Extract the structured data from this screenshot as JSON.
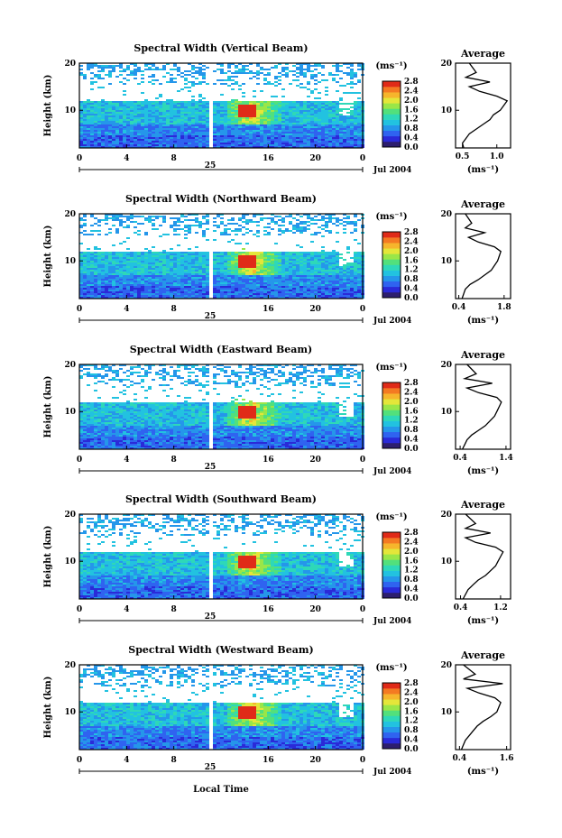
{
  "figure": {
    "xlabel": "Local Time",
    "date_label": "Jul 2004",
    "day_label": "25",
    "ylabel": "Height (km)",
    "colorbar_unit": "(ms⁻¹)",
    "avg_title": "Average",
    "avg_xlabel": "(ms⁻¹)",
    "colorbar_ticks": [
      "0.0",
      "0.4",
      "0.8",
      "1.2",
      "1.6",
      "2.0",
      "2.4",
      "2.8"
    ],
    "colorscale": [
      "#2d1e6e",
      "#2a2ad8",
      "#2f63f0",
      "#2596ea",
      "#22c2e0",
      "#2ed8b8",
      "#52e07c",
      "#9ae648",
      "#e4e63a",
      "#f6b52c",
      "#f47a22",
      "#e02a18"
    ]
  },
  "chart_data": [
    {
      "type": "heatmap",
      "title": "Spectral Width (Vertical Beam)",
      "xlim": [
        0,
        24
      ],
      "ylim": [
        2,
        20
      ],
      "xticks": [
        "0",
        "4",
        "8",
        "16",
        "20",
        "0"
      ],
      "yticks": [
        "10",
        "20"
      ],
      "zlim": [
        0,
        2.8
      ],
      "average": {
        "xticks": [
          "0.5",
          "1.0"
        ],
        "xlim": [
          0.4,
          1.2
        ],
        "x": [
          0.52,
          0.5,
          0.55,
          0.6,
          0.7,
          0.8,
          0.9,
          0.95,
          1.05,
          1.1,
          1.15,
          1.0,
          0.75,
          0.6,
          0.9,
          0.55,
          0.7,
          0.6
        ],
        "y": [
          2,
          3,
          4,
          5,
          6,
          7,
          8,
          9,
          10,
          11,
          12,
          13,
          14,
          15,
          16,
          17,
          18,
          20
        ]
      }
    },
    {
      "type": "heatmap",
      "title": "Spectral Width (Northward Beam)",
      "xlim": [
        0,
        24
      ],
      "ylim": [
        2,
        20
      ],
      "xticks": [
        "0",
        "4",
        "8",
        "16",
        "20",
        "0"
      ],
      "yticks": [
        "10",
        "20"
      ],
      "zlim": [
        0,
        2.8
      ],
      "average": {
        "xticks": [
          "0.4",
          "1.8"
        ],
        "xlim": [
          0.3,
          2.0
        ],
        "x": [
          0.5,
          0.55,
          0.6,
          0.75,
          1.0,
          1.2,
          1.4,
          1.5,
          1.6,
          1.65,
          1.7,
          1.5,
          1.0,
          0.7,
          1.2,
          0.6,
          0.8,
          0.6
        ],
        "y": [
          2,
          3,
          4,
          5,
          6,
          7,
          8,
          9,
          10,
          11,
          12,
          13,
          14,
          15,
          16,
          17,
          18,
          20
        ]
      }
    },
    {
      "type": "heatmap",
      "title": "Spectral Width (Eastward Beam)",
      "xlim": [
        0,
        24
      ],
      "ylim": [
        2,
        20
      ],
      "xticks": [
        "0",
        "4",
        "8",
        "16",
        "20",
        "0"
      ],
      "yticks": [
        "10",
        "20"
      ],
      "zlim": [
        0,
        2.8
      ],
      "average": {
        "xticks": [
          "0.4",
          "1.4"
        ],
        "xlim": [
          0.3,
          1.5
        ],
        "x": [
          0.45,
          0.5,
          0.55,
          0.65,
          0.8,
          0.95,
          1.05,
          1.15,
          1.2,
          1.25,
          1.3,
          1.2,
          0.8,
          0.55,
          1.1,
          0.5,
          0.75,
          0.55
        ],
        "y": [
          2,
          3,
          4,
          5,
          6,
          7,
          8,
          9,
          10,
          11,
          12,
          13,
          14,
          15,
          16,
          17,
          18,
          20
        ]
      }
    },
    {
      "type": "heatmap",
      "title": "Spectral Width (Southward Beam)",
      "xlim": [
        0,
        24
      ],
      "ylim": [
        2,
        20
      ],
      "xticks": [
        "0",
        "4",
        "8",
        "16",
        "20",
        "0"
      ],
      "yticks": [
        "10",
        "20"
      ],
      "zlim": [
        0,
        2.8
      ],
      "average": {
        "xticks": [
          "0.4",
          "1.2"
        ],
        "xlim": [
          0.3,
          1.4
        ],
        "x": [
          0.45,
          0.5,
          0.55,
          0.65,
          0.75,
          0.9,
          1.0,
          1.1,
          1.15,
          1.2,
          1.25,
          1.1,
          0.7,
          0.5,
          1.0,
          0.5,
          0.7,
          0.5
        ],
        "y": [
          2,
          3,
          4,
          5,
          6,
          7,
          8,
          9,
          10,
          11,
          12,
          13,
          14,
          15,
          16,
          17,
          18,
          20
        ]
      }
    },
    {
      "type": "heatmap",
      "title": "Spectral Width (Westward Beam)",
      "xlim": [
        0,
        24
      ],
      "ylim": [
        2,
        20
      ],
      "xticks": [
        "0",
        "4",
        "8",
        "16",
        "20",
        "0"
      ],
      "yticks": [
        "10",
        "20"
      ],
      "zlim": [
        0,
        2.8
      ],
      "average": {
        "xticks": [
          "0.4",
          "1.6"
        ],
        "xlim": [
          0.3,
          1.7
        ],
        "x": [
          0.45,
          0.5,
          0.55,
          0.65,
          0.75,
          0.85,
          1.0,
          1.2,
          1.35,
          1.4,
          1.45,
          1.3,
          0.9,
          0.6,
          1.5,
          0.5,
          0.8,
          0.5
        ],
        "y": [
          2,
          3,
          4,
          5,
          6,
          7,
          8,
          9,
          10,
          11,
          12,
          13,
          14,
          15,
          16,
          17,
          18,
          20
        ]
      }
    }
  ]
}
